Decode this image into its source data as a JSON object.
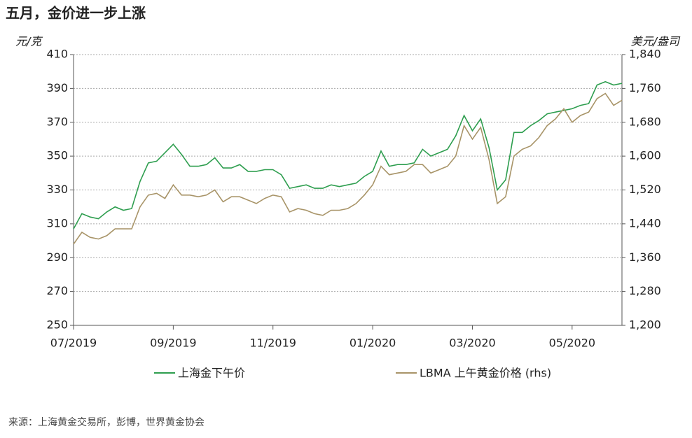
{
  "chart_data": {
    "type": "line",
    "title": "五月，金价进一步上涨",
    "y_label": "元/克",
    "y2_label": "美元/盎司",
    "source": "来源：上海黄金交易所，彭博，世界黄金协会",
    "categories": [
      "07/2019",
      null,
      null,
      null,
      null,
      null,
      null,
      null,
      null,
      null,
      null,
      null,
      "09/2019",
      null,
      null,
      null,
      null,
      null,
      null,
      null,
      null,
      null,
      null,
      null,
      "11/2019",
      null,
      null,
      null,
      null,
      null,
      null,
      null,
      null,
      null,
      null,
      null,
      "01/2020",
      null,
      null,
      null,
      null,
      null,
      null,
      null,
      null,
      null,
      null,
      null,
      "03/2020",
      null,
      null,
      null,
      null,
      null,
      null,
      null,
      null,
      null,
      null,
      null,
      "05/2020",
      null,
      null,
      null,
      null,
      null,
      null
    ],
    "ylim": [
      250,
      410
    ],
    "yticks": [
      250,
      270,
      290,
      310,
      330,
      350,
      370,
      390,
      410
    ],
    "y2lim": [
      1200,
      1840
    ],
    "y2ticks": [
      {
        "value": 1200,
        "label": "1,200"
      },
      {
        "value": 1280,
        "label": "1,280"
      },
      {
        "value": 1360,
        "label": "1,360"
      },
      {
        "value": 1440,
        "label": "1,440"
      },
      {
        "value": 1520,
        "label": "1,520"
      },
      {
        "value": 1600,
        "label": "1,600"
      },
      {
        "value": 1680,
        "label": "1,680"
      },
      {
        "value": 1760,
        "label": "1,760"
      },
      {
        "value": 1840,
        "label": "1,840"
      }
    ],
    "grid": true,
    "series": [
      {
        "name": "上海金下午价",
        "color": "#2e9e4f",
        "axis": "y",
        "values": [
          307,
          316,
          314,
          313,
          317,
          320,
          318,
          319,
          335,
          346,
          347,
          352,
          357,
          351,
          344,
          344,
          345,
          349,
          343,
          343,
          345,
          341,
          341,
          342,
          342,
          339,
          331,
          332,
          333,
          331,
          331,
          333,
          332,
          333,
          334,
          338,
          341,
          353,
          344,
          345,
          345,
          346,
          354,
          350,
          352,
          354,
          362,
          374,
          365,
          372,
          355,
          330,
          336,
          364,
          364,
          368,
          371,
          375,
          376,
          377,
          378,
          380,
          381,
          392,
          394,
          392,
          393
        ]
      },
      {
        "name": "LBMA 上午黄金价格 (rhs)",
        "color": "#a89468",
        "axis": "y2",
        "values": [
          1392,
          1420,
          1408,
          1404,
          1412,
          1428,
          1428,
          1428,
          1480,
          1508,
          1512,
          1500,
          1532,
          1508,
          1508,
          1504,
          1508,
          1520,
          1492,
          1504,
          1504,
          1496,
          1488,
          1500,
          1508,
          1504,
          1468,
          1476,
          1472,
          1464,
          1460,
          1472,
          1472,
          1476,
          1488,
          1508,
          1532,
          1576,
          1556,
          1560,
          1564,
          1580,
          1580,
          1560,
          1568,
          1576,
          1600,
          1672,
          1640,
          1668,
          1592,
          1488,
          1504,
          1600,
          1616,
          1624,
          1644,
          1672,
          1688,
          1712,
          1680,
          1696,
          1704,
          1736,
          1748,
          1720,
          1732
        ]
      }
    ]
  }
}
